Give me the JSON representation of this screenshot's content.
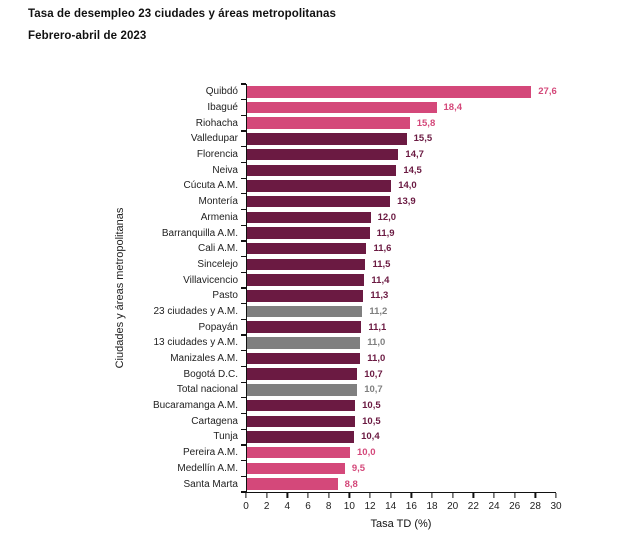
{
  "header": {
    "title": "Tasa de desempleo 23 ciudades y áreas metropolitanas",
    "subtitle": "Febrero-abril de 2023"
  },
  "chart_data": {
    "type": "bar",
    "orientation": "horizontal",
    "title": "Tasa de desempleo 23 ciudades y áreas metropolitanas",
    "subtitle": "Febrero-abril de 2023",
    "xlabel": "Tasa TD (%)",
    "ylabel": "Ciudades y áreas metropolitanas",
    "xlim": [
      0,
      30
    ],
    "xticks": [
      0,
      2,
      4,
      6,
      8,
      10,
      12,
      14,
      16,
      18,
      20,
      22,
      24,
      26,
      28,
      30
    ],
    "grid": false,
    "legend": false,
    "palette": {
      "highlight_pink": "#d4487a",
      "city_maroon": "#6b1a42",
      "aggregate_gray": "#7f7f7f"
    },
    "bars": [
      {
        "label": "Quibdó",
        "value": 27.6,
        "display": "27,6",
        "group": "highlight_pink"
      },
      {
        "label": "Ibagué",
        "value": 18.4,
        "display": "18,4",
        "group": "highlight_pink"
      },
      {
        "label": "Riohacha",
        "value": 15.8,
        "display": "15,8",
        "group": "highlight_pink"
      },
      {
        "label": "Valledupar",
        "value": 15.5,
        "display": "15,5",
        "group": "city_maroon"
      },
      {
        "label": "Florencia",
        "value": 14.7,
        "display": "14,7",
        "group": "city_maroon"
      },
      {
        "label": "Neiva",
        "value": 14.5,
        "display": "14,5",
        "group": "city_maroon"
      },
      {
        "label": "Cúcuta A.M.",
        "value": 14.0,
        "display": "14,0",
        "group": "city_maroon"
      },
      {
        "label": "Montería",
        "value": 13.9,
        "display": "13,9",
        "group": "city_maroon"
      },
      {
        "label": "Armenia",
        "value": 12.0,
        "display": "12,0",
        "group": "city_maroon"
      },
      {
        "label": "Barranquilla A.M.",
        "value": 11.9,
        "display": "11,9",
        "group": "city_maroon"
      },
      {
        "label": "Cali A.M.",
        "value": 11.6,
        "display": "11,6",
        "group": "city_maroon"
      },
      {
        "label": "Sincelejo",
        "value": 11.5,
        "display": "11,5",
        "group": "city_maroon"
      },
      {
        "label": "Villavicencio",
        "value": 11.4,
        "display": "11,4",
        "group": "city_maroon"
      },
      {
        "label": "Pasto",
        "value": 11.3,
        "display": "11,3",
        "group": "city_maroon"
      },
      {
        "label": "23 ciudades y A.M.",
        "value": 11.2,
        "display": "11,2",
        "group": "aggregate_gray"
      },
      {
        "label": "Popayán",
        "value": 11.1,
        "display": "11,1",
        "group": "city_maroon"
      },
      {
        "label": "13 ciudades y A.M.",
        "value": 11.0,
        "display": "11,0",
        "group": "aggregate_gray"
      },
      {
        "label": "Manizales A.M.",
        "value": 11.0,
        "display": "11,0",
        "group": "city_maroon"
      },
      {
        "label": "Bogotá D.C.",
        "value": 10.7,
        "display": "10,7",
        "group": "city_maroon"
      },
      {
        "label": "Total nacional",
        "value": 10.7,
        "display": "10,7",
        "group": "aggregate_gray"
      },
      {
        "label": "Bucaramanga A.M.",
        "value": 10.5,
        "display": "10,5",
        "group": "city_maroon"
      },
      {
        "label": "Cartagena",
        "value": 10.5,
        "display": "10,5",
        "group": "city_maroon"
      },
      {
        "label": "Tunja",
        "value": 10.4,
        "display": "10,4",
        "group": "city_maroon"
      },
      {
        "label": "Pereira A.M.",
        "value": 10.0,
        "display": "10,0",
        "group": "highlight_pink"
      },
      {
        "label": "Medellín A.M.",
        "value": 9.5,
        "display": "9,5",
        "group": "highlight_pink"
      },
      {
        "label": "Santa Marta",
        "value": 8.8,
        "display": "8,8",
        "group": "highlight_pink"
      }
    ]
  }
}
